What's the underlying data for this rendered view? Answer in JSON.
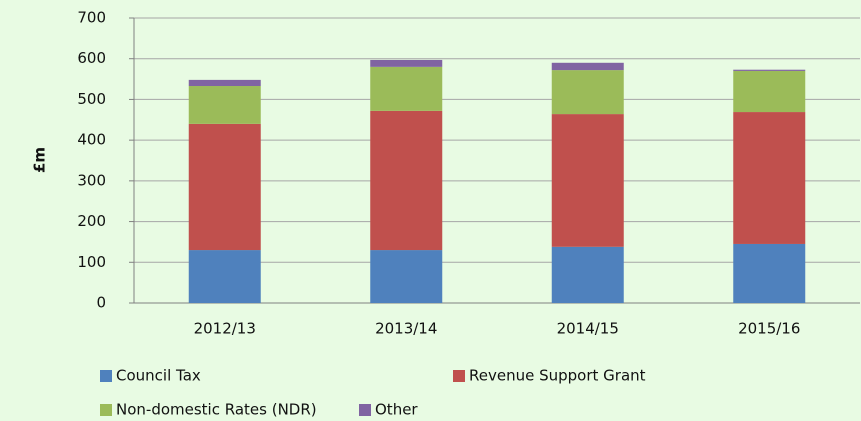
{
  "chart_data": {
    "type": "stacked_bar",
    "y_label": "£m",
    "categories": [
      "2012/13",
      "2013/14",
      "2014/15",
      "2015/16"
    ],
    "series": [
      {
        "name": "Council Tax",
        "color": "#4f81bd",
        "values": [
          130,
          130,
          138,
          145
        ]
      },
      {
        "name": "Revenue Support Grant",
        "color": "#c0504d",
        "values": [
          310,
          342,
          326,
          324
        ]
      },
      {
        "name": "Non-domestic Rates (NDR)",
        "color": "#9bbb59",
        "values": [
          93,
          108,
          108,
          101
        ]
      },
      {
        "name": "Other",
        "color": "#8064a2",
        "values": [
          15,
          17,
          18,
          3
        ]
      }
    ],
    "ylim": [
      0,
      700
    ],
    "yticks": [
      0,
      100,
      200,
      300,
      400,
      500,
      600,
      700
    ],
    "grid": true,
    "legend": "bottom"
  }
}
